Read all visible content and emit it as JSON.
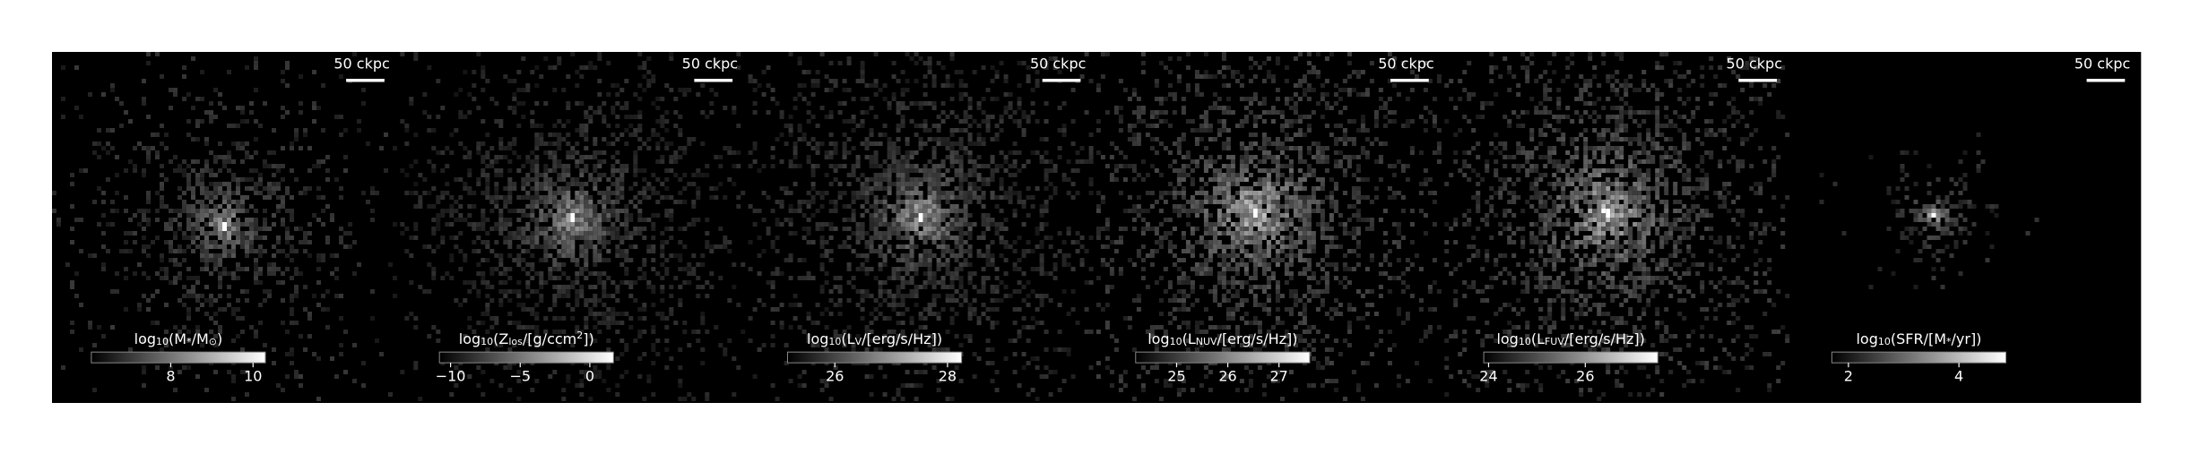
{
  "panels": [
    {
      "scale_bar": "50 ckpc",
      "colorbar": {
        "label": [
          {
            "t": "log"
          },
          {
            "t": "10",
            "sub": true
          },
          {
            "t": "(M"
          },
          {
            "t": "*",
            "sub": true
          },
          {
            "t": "/M"
          },
          {
            "t": "⊙",
            "sub": true
          },
          {
            "t": ")"
          }
        ],
        "lim": [
          6.07,
          10.3
        ],
        "ticks": [
          8,
          10
        ]
      }
    },
    {
      "scale_bar": "50 ckpc",
      "colorbar": {
        "label": [
          {
            "t": "log"
          },
          {
            "t": "10",
            "sub": true
          },
          {
            "t": "(Z"
          },
          {
            "t": "los",
            "sub": true
          },
          {
            "t": "/[g/ccm"
          },
          {
            "t": "2",
            "sup": true
          },
          {
            "t": "])"
          }
        ],
        "lim": [
          -10.8,
          1.7
        ],
        "ticks": [
          {
            "value": -10,
            "label": "−10"
          },
          {
            "value": -5,
            "label": "−5"
          },
          0
        ]
      }
    },
    {
      "scale_bar": "50 ckpc",
      "colorbar": {
        "label": [
          {
            "t": "log"
          },
          {
            "t": "10",
            "sub": true
          },
          {
            "t": "(L"
          },
          {
            "t": "V",
            "sub": true
          },
          {
            "t": "/[erg/s/Hz])"
          }
        ],
        "lim": [
          25.16,
          28.25
        ],
        "ticks": [
          26,
          28
        ]
      }
    },
    {
      "scale_bar": "50 ckpc",
      "colorbar": {
        "label": [
          {
            "t": "log"
          },
          {
            "t": "10",
            "sub": true
          },
          {
            "t": "(L"
          },
          {
            "t": "NUV",
            "sub": true
          },
          {
            "t": "/[erg/s/Hz])"
          }
        ],
        "lim": [
          24.2,
          27.6
        ],
        "ticks": [
          25,
          26,
          27
        ]
      }
    },
    {
      "scale_bar": "50 ckpc",
      "colorbar": {
        "label": [
          {
            "t": "log"
          },
          {
            "t": "10",
            "sub": true
          },
          {
            "t": "(L"
          },
          {
            "t": "FUV",
            "sub": true
          },
          {
            "t": "/[erg/s/Hz])"
          }
        ],
        "lim": [
          23.9,
          27.5
        ],
        "ticks": [
          24,
          26
        ]
      }
    },
    {
      "scale_bar": "50 ckpc",
      "colorbar": {
        "label": [
          {
            "t": "log"
          },
          {
            "t": "10",
            "sub": true
          },
          {
            "t": "(SFR/[M"
          },
          {
            "t": "*",
            "sub": true
          },
          {
            "t": "/yr])"
          }
        ],
        "lim": [
          1.7,
          4.85
        ],
        "ticks": [
          2,
          4
        ]
      }
    }
  ]
}
